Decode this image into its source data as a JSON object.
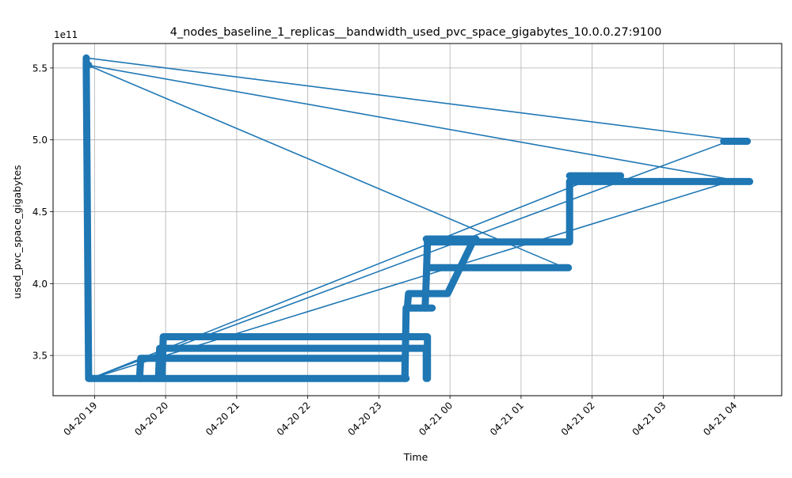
{
  "chart_data": {
    "type": "line",
    "title": "4_nodes_baseline_1_replicas__bandwidth_used_pvc_space_gigabytes_10.0.0.27:9100",
    "xlabel": "Time",
    "ylabel": "used_pvc_space_gigabytes",
    "y_offset_label": "1e11",
    "x_ticks": [
      {
        "label": "04-20 19",
        "value": "2024-04-20T19:00"
      },
      {
        "label": "04-20 20",
        "value": "2024-04-20T20:00"
      },
      {
        "label": "04-20 21",
        "value": "2024-04-20T21:00"
      },
      {
        "label": "04-20 22",
        "value": "2024-04-20T22:00"
      },
      {
        "label": "04-20 23",
        "value": "2024-04-20T23:00"
      },
      {
        "label": "04-21 00",
        "value": "2024-04-21T00:00"
      },
      {
        "label": "04-21 01",
        "value": "2024-04-21T01:00"
      },
      {
        "label": "04-21 02",
        "value": "2024-04-21T02:00"
      },
      {
        "label": "04-21 03",
        "value": "2024-04-21T03:00"
      },
      {
        "label": "04-21 04",
        "value": "2024-04-21T04:00"
      }
    ],
    "y_ticks": [
      {
        "label": "3.5",
        "value": 3.5
      },
      {
        "label": "4.0",
        "value": 4.0
      },
      {
        "label": "4.5",
        "value": 4.5
      },
      {
        "label": "5.0",
        "value": 5.0
      },
      {
        "label": "5.5",
        "value": 5.5
      }
    ],
    "xlim": [
      "2024-04-20T18:25",
      "2024-04-21T04:40"
    ],
    "ylim": [
      3.22,
      5.67
    ],
    "grid": true,
    "color": "#1f77b4",
    "segments": [
      {
        "x": [
          "2024-04-20T18:53",
          "2024-04-20T18:53",
          "2024-04-20T18:55"
        ],
        "y": [
          5.56,
          5.52,
          3.34
        ]
      },
      {
        "x": [
          "2024-04-20T18:55",
          "2024-04-20T23:23"
        ],
        "y": [
          3.34,
          3.34
        ]
      },
      {
        "x": [
          "2024-04-20T19:38",
          "2024-04-20T19:39",
          "2024-04-20T23:22",
          "2024-04-20T23:22"
        ],
        "y": [
          3.34,
          3.48,
          3.48,
          3.34
        ]
      },
      {
        "x": [
          "2024-04-20T19:54",
          "2024-04-20T19:55",
          "2024-04-20T23:40",
          "2024-04-20T23:40"
        ],
        "y": [
          3.34,
          3.55,
          3.55,
          3.34
        ]
      },
      {
        "x": [
          "2024-04-20T19:57",
          "2024-04-20T19:58",
          "2024-04-20T23:41",
          "2024-04-20T23:41"
        ],
        "y": [
          3.34,
          3.63,
          3.63,
          3.34
        ]
      },
      {
        "x": [
          "2024-04-20T23:22",
          "2024-04-20T23:23",
          "2024-04-20T23:45"
        ],
        "y": [
          3.34,
          3.83,
          3.83
        ]
      },
      {
        "x": [
          "2024-04-20T23:24",
          "2024-04-20T23:25",
          "2024-04-20T23:58",
          "2024-04-21T00:18"
        ],
        "y": [
          3.83,
          3.93,
          3.93,
          4.27
        ]
      },
      {
        "x": [
          "2024-04-20T23:39",
          "2024-04-20T23:40",
          "2024-04-20T23:41"
        ],
        "y": [
          3.83,
          4.03,
          4.29
        ]
      },
      {
        "x": [
          "2024-04-20T23:40",
          "2024-04-21T00:22"
        ],
        "y": [
          4.31,
          4.31
        ]
      },
      {
        "x": [
          "2024-04-20T23:41",
          "2024-04-21T01:41",
          "2024-04-21T01:41"
        ],
        "y": [
          4.29,
          4.29,
          4.71
        ]
      },
      {
        "x": [
          "2024-04-20T23:42",
          "2024-04-21T01:40"
        ],
        "y": [
          4.11,
          4.11
        ]
      },
      {
        "x": [
          "2024-04-21T01:41",
          "2024-04-21T02:24"
        ],
        "y": [
          4.75,
          4.75
        ]
      },
      {
        "x": [
          "2024-04-21T01:41",
          "2024-04-21T04:13"
        ],
        "y": [
          4.71,
          4.71
        ]
      },
      {
        "x": [
          "2024-04-21T03:51",
          "2024-04-21T04:11"
        ],
        "y": [
          4.99,
          4.99
        ]
      }
    ],
    "connector_lines": [
      {
        "x": [
          "2024-04-20T18:53",
          "2024-04-21T04:00"
        ],
        "y": [
          5.57,
          5.0
        ]
      },
      {
        "x": [
          "2024-04-20T18:54",
          "2024-04-21T04:00"
        ],
        "y": [
          5.52,
          4.72
        ]
      },
      {
        "x": [
          "2024-04-20T18:57",
          "2024-04-21T01:40"
        ],
        "y": [
          5.51,
          4.1
        ]
      },
      {
        "x": [
          "2024-04-20T18:57",
          "2024-04-21T04:00"
        ],
        "y": [
          3.34,
          4.72
        ]
      },
      {
        "x": [
          "2024-04-20T18:57",
          "2024-04-21T03:55"
        ],
        "y": [
          3.34,
          4.99
        ]
      },
      {
        "x": [
          "2024-04-20T18:57",
          "2024-04-21T02:00"
        ],
        "y": [
          3.34,
          4.73
        ]
      }
    ],
    "markers": [
      {
        "x": "2024-04-20T18:53",
        "y": 5.57
      },
      {
        "x": "2024-04-20T18:53",
        "y": 5.52
      },
      {
        "x": "2024-04-20T18:55",
        "y": 5.52
      },
      {
        "x": "2024-04-20T23:40",
        "y": 4.03
      }
    ]
  }
}
